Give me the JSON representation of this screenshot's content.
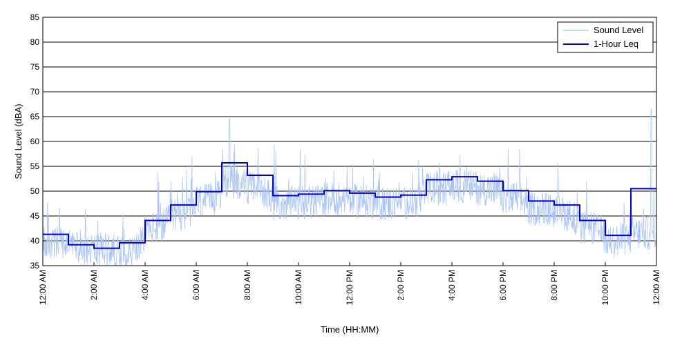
{
  "chart_data": {
    "type": "line",
    "xlabel": "Time (HH:MM)",
    "ylabel": "Sound Level (dBA)",
    "ylim": [
      35,
      85
    ],
    "y_ticks": [
      "35",
      "40",
      "45",
      "50",
      "55",
      "60",
      "65",
      "70",
      "75",
      "80",
      "85"
    ],
    "xlim_hours": [
      0,
      24
    ],
    "x_tick_labels": [
      "12:00 AM",
      "2:00 AM",
      "4:00 AM",
      "6:00 AM",
      "8:00 AM",
      "10:00 AM",
      "12:00 PM",
      "2:00 PM",
      "4:00 PM",
      "6:00 PM",
      "8:00 PM",
      "10:00 PM",
      "12:00 AM"
    ],
    "grid": "horizontal",
    "legend_position": "top-right",
    "series": [
      {
        "name": "Sound Level",
        "color": "#a9c3f5",
        "style": "noisy-raw",
        "hourly_baseline": [
          39.5,
          38.8,
          38.2,
          37.8,
          42.5,
          45.5,
          48.0,
          52.0,
          50.5,
          47.5,
          47.8,
          48.5,
          48.0,
          47.5,
          47.8,
          50.5,
          51.0,
          50.5,
          48.5,
          46.5,
          45.5,
          42.5,
          40.0,
          41.5
        ],
        "peaks": [
          {
            "x_hours": 7.3,
            "y": 64.5
          },
          {
            "x_hours": 23.8,
            "y": 66.5
          }
        ]
      },
      {
        "name": "1-Hour Leq",
        "color": "#0000c8",
        "style": "step",
        "hourly_values": [
          41.3,
          39.2,
          38.5,
          39.6,
          44.1,
          47.2,
          49.9,
          55.7,
          53.2,
          49.1,
          49.4,
          50.1,
          49.6,
          48.8,
          49.2,
          52.3,
          52.9,
          52.0,
          50.1,
          48.0,
          47.2,
          44.1,
          41.1,
          50.5
        ]
      }
    ]
  }
}
